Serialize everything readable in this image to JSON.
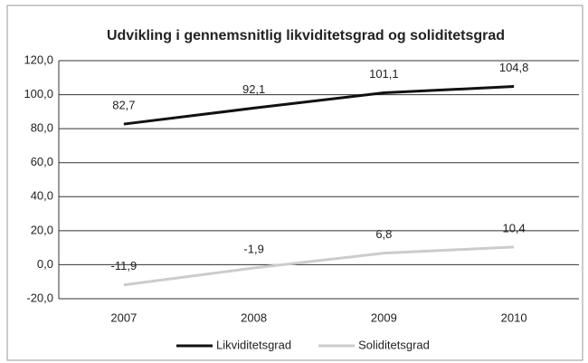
{
  "chart_data": {
    "type": "line",
    "title": "Udvikling i gennemsnitlig likviditetsgrad og soliditetsgrad",
    "categories": [
      "2007",
      "2008",
      "2009",
      "2010"
    ],
    "series": [
      {
        "name": "Likviditetsgrad",
        "color": "#111111",
        "values": [
          82.7,
          92.1,
          101.1,
          104.8
        ],
        "value_labels": [
          "82,7",
          "92,1",
          "101,1",
          "104,8"
        ]
      },
      {
        "name": "Soliditetsgrad",
        "color": "#cccccc",
        "values": [
          -11.9,
          -1.9,
          6.8,
          10.4
        ],
        "value_labels": [
          "-11,9",
          "-1,9",
          "6,8",
          "10,4"
        ]
      }
    ],
    "ylim": [
      -20,
      120
    ],
    "yticks": [
      {
        "value": -20,
        "label": "-20,0"
      },
      {
        "value": 0,
        "label": "0,0"
      },
      {
        "value": 20,
        "label": "20,0"
      },
      {
        "value": 40,
        "label": "40,0"
      },
      {
        "value": 60,
        "label": "60,0"
      },
      {
        "value": 80,
        "label": "80,0"
      },
      {
        "value": 100,
        "label": "100,0"
      },
      {
        "value": 120,
        "label": "120,0"
      }
    ],
    "grid": true,
    "legend": "bottom"
  }
}
